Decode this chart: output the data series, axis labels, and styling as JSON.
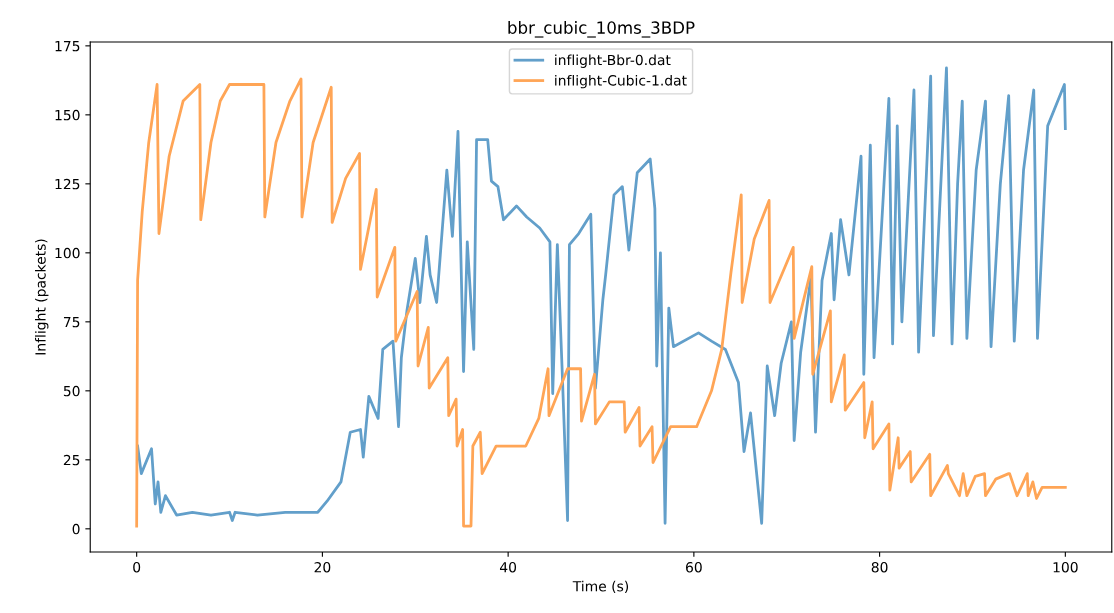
{
  "chart_data": {
    "type": "line",
    "title": "bbr_cubic_10ms_3BDP",
    "xlabel": "Time (s)",
    "ylabel": "Inflight (packets)",
    "xlim": [
      -5,
      105
    ],
    "ylim": [
      -8.4,
      176.4
    ],
    "xticks": [
      0,
      20,
      40,
      60,
      80,
      100
    ],
    "yticks": [
      0,
      25,
      50,
      75,
      100,
      125,
      150,
      175
    ],
    "grid": false,
    "legend": "top",
    "marker": "none",
    "line_style": "solid",
    "series": [
      {
        "name": "inflight-Bbr-0.dat",
        "color": "#629fca",
        "x": [
          0.1,
          0.5,
          1.6,
          2.0,
          2.3,
          2.6,
          3.1,
          4.3,
          6,
          8,
          10,
          10.3,
          10.6,
          13,
          16,
          19.5,
          20.5,
          22,
          23,
          24.1,
          24.4,
          25,
          26,
          26.5,
          27.6,
          28.2,
          28.5,
          29.1,
          30,
          30.5,
          31.2,
          31.6,
          32.3,
          33.4,
          34,
          34.6,
          35.2,
          35.6,
          36.3,
          36.6,
          37.8,
          38.2,
          38.9,
          39.5,
          40.9,
          42,
          43.4,
          44.5,
          44.8,
          45.3,
          45.8,
          46.4,
          46.6,
          47.6,
          48.9,
          49.4,
          50.2,
          50.5,
          51.4,
          52.3,
          53,
          53.9,
          55.3,
          55.8,
          56,
          56.4,
          56.9,
          57.3,
          57.8,
          60.5,
          61.9,
          63.4,
          64.8,
          65.4,
          66.1,
          67.3,
          67.9,
          68.7,
          69.4,
          70.5,
          70.8,
          71.5,
          72.6,
          73.1,
          73.8,
          74.8,
          75.1,
          75.8,
          76.7,
          78,
          78.3,
          79,
          79.4,
          81,
          81.4,
          81.9,
          82.4,
          83.7,
          84.2,
          85.5,
          85.8,
          87.2,
          87.8,
          88.4,
          88.9,
          89.4,
          90.4,
          91.4,
          92,
          93,
          93.9,
          94.5,
          95.5,
          96.6,
          97,
          98.1,
          99.9,
          100
        ],
        "values": [
          30,
          20,
          29,
          9,
          17,
          6,
          12,
          5,
          6,
          5,
          6,
          3,
          6,
          5,
          6,
          6,
          10,
          17,
          35,
          36,
          26,
          48,
          40,
          65,
          68,
          37,
          62,
          79,
          98,
          82,
          106,
          92,
          82,
          130,
          106,
          144,
          57,
          104,
          65,
          141,
          141,
          126,
          124,
          112,
          117,
          113,
          109,
          104,
          49,
          103,
          59,
          3,
          103,
          107,
          114,
          51,
          83,
          92,
          121,
          124,
          101,
          129,
          134,
          116,
          59,
          100,
          2,
          80,
          66,
          71,
          68,
          65,
          53,
          28,
          42,
          2,
          59,
          41,
          60,
          75,
          32,
          64,
          91,
          35,
          90,
          107,
          83,
          112,
          92,
          135,
          56,
          139,
          62,
          156,
          67,
          146,
          75,
          159,
          64,
          164,
          70,
          167,
          67,
          125,
          155,
          69,
          130,
          155,
          66,
          125,
          157,
          68,
          130,
          159,
          69,
          146,
          161,
          145
        ]
      },
      {
        "name": "inflight-Cubic-1.dat",
        "color": "#ffa556",
        "x": [
          0,
          0.1,
          0.6,
          1.3,
          2.2,
          2.4,
          3.5,
          5,
          6.8,
          6.9,
          8,
          9,
          10,
          13.7,
          13.8,
          15,
          16.5,
          17.7,
          17.8,
          19,
          20.95,
          21.05,
          22.5,
          24,
          24.1,
          25.8,
          25.9,
          27.8,
          27.9,
          30.2,
          30.3,
          31.4,
          31.5,
          33.5,
          33.6,
          34.4,
          34.5,
          35.1,
          35.2,
          36,
          36.2,
          37,
          37.2,
          38.7,
          41.9,
          43.3,
          44.3,
          44.4,
          46.4,
          47.8,
          47.9,
          49.3,
          49.4,
          50.9,
          52.5,
          52.6,
          54.1,
          54.2,
          55.5,
          55.6,
          57.5,
          60.3,
          61.9,
          63,
          64,
          65.1,
          65.2,
          66.5,
          68.1,
          68.2,
          70.7,
          70.8,
          72.7,
          72.8,
          74.7,
          74.8,
          76.2,
          76.3,
          78.3,
          78.4,
          79.2,
          79.3,
          81,
          81.1,
          82,
          82.1,
          83.3,
          83.4,
          85.4,
          85.5,
          87.3,
          87.4,
          88.6,
          89,
          89.4,
          90.3,
          91.3,
          91.4,
          92.5,
          93.9,
          94,
          94.8,
          95.9,
          96,
          96.5,
          96.9,
          97.5,
          100
        ],
        "values": [
          1,
          90,
          115,
          140,
          161,
          107,
          135,
          155,
          161,
          112,
          140,
          155,
          161,
          161,
          113,
          140,
          155,
          163,
          113,
          140,
          160,
          111,
          127,
          136,
          94,
          123,
          84,
          102,
          68,
          86,
          59,
          73,
          51,
          62,
          41,
          47,
          30,
          36,
          1,
          1,
          30,
          35,
          20,
          30,
          30,
          40,
          58,
          41,
          58,
          58,
          39,
          56,
          38,
          46,
          46,
          35,
          44,
          30,
          37,
          24,
          37,
          37,
          50,
          65,
          93,
          121,
          82,
          105,
          119,
          82,
          102,
          69,
          95,
          56,
          79,
          46,
          63,
          43,
          53,
          33,
          46,
          29,
          38,
          14,
          33,
          22,
          28,
          17,
          27,
          12,
          23,
          20,
          12,
          20,
          12,
          19,
          20,
          12,
          18,
          20,
          20,
          12,
          20,
          12,
          17,
          11,
          15,
          15
        ]
      }
    ]
  }
}
